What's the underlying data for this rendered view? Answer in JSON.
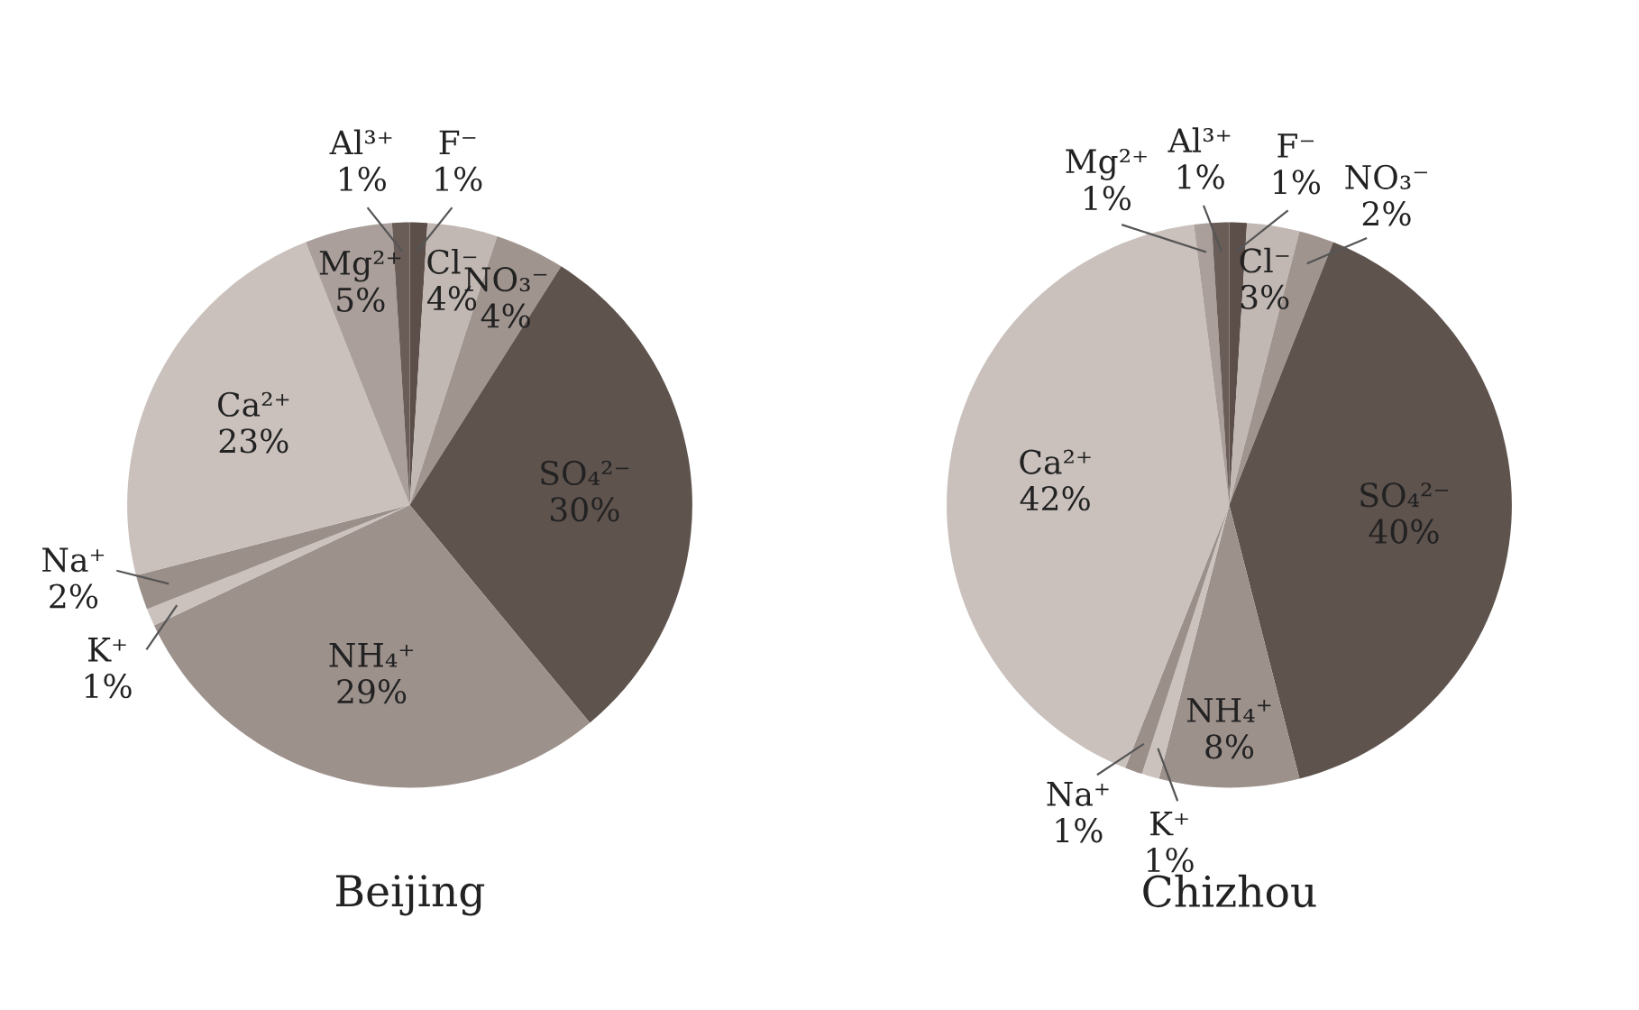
{
  "chart_data": [
    {
      "type": "pie",
      "title": "Beijing",
      "categories": [
        "F⁻",
        "Cl⁻",
        "NO₃⁻",
        "SO₄²⁻",
        "NH₄⁺",
        "K⁺",
        "Na⁺",
        "Ca²⁺",
        "Mg²⁺",
        "Al³⁺"
      ],
      "values": [
        1,
        4,
        4,
        30,
        29,
        1,
        2,
        23,
        5,
        1
      ],
      "value_labels": [
        "1%",
        "4%",
        "4%",
        "30%",
        "29%",
        "1%",
        "2%",
        "23%",
        "5%",
        "1%"
      ],
      "colors": [
        "#5c4f4a",
        "#c2b8b3",
        "#a0948f",
        "#5f534e",
        "#9d918c",
        "#cbc2be",
        "#9b8f8a",
        "#cac1bd",
        "#aa9f9a",
        "#6a5d58"
      ],
      "legend": false
    },
    {
      "type": "pie",
      "title": "Chizhou",
      "categories": [
        "F⁻",
        "Cl⁻",
        "NO₃⁻",
        "SO₄²⁻",
        "NH₄⁺",
        "K⁺",
        "Na⁺",
        "Ca²⁺",
        "Mg²⁺",
        "Al³⁺"
      ],
      "values": [
        1,
        3,
        2,
        40,
        8,
        1,
        1,
        42,
        1,
        1
      ],
      "value_labels": [
        "1%",
        "3%",
        "2%",
        "40%",
        "8%",
        "1%",
        "1%",
        "42%",
        "1%",
        "1%"
      ],
      "colors": [
        "#5c4f4a",
        "#c2b8b3",
        "#a0948f",
        "#5f534e",
        "#9d918c",
        "#cbc2be",
        "#9b8f8a",
        "#cac1bd",
        "#aa9f9a",
        "#6a5d58"
      ],
      "legend": false
    }
  ]
}
